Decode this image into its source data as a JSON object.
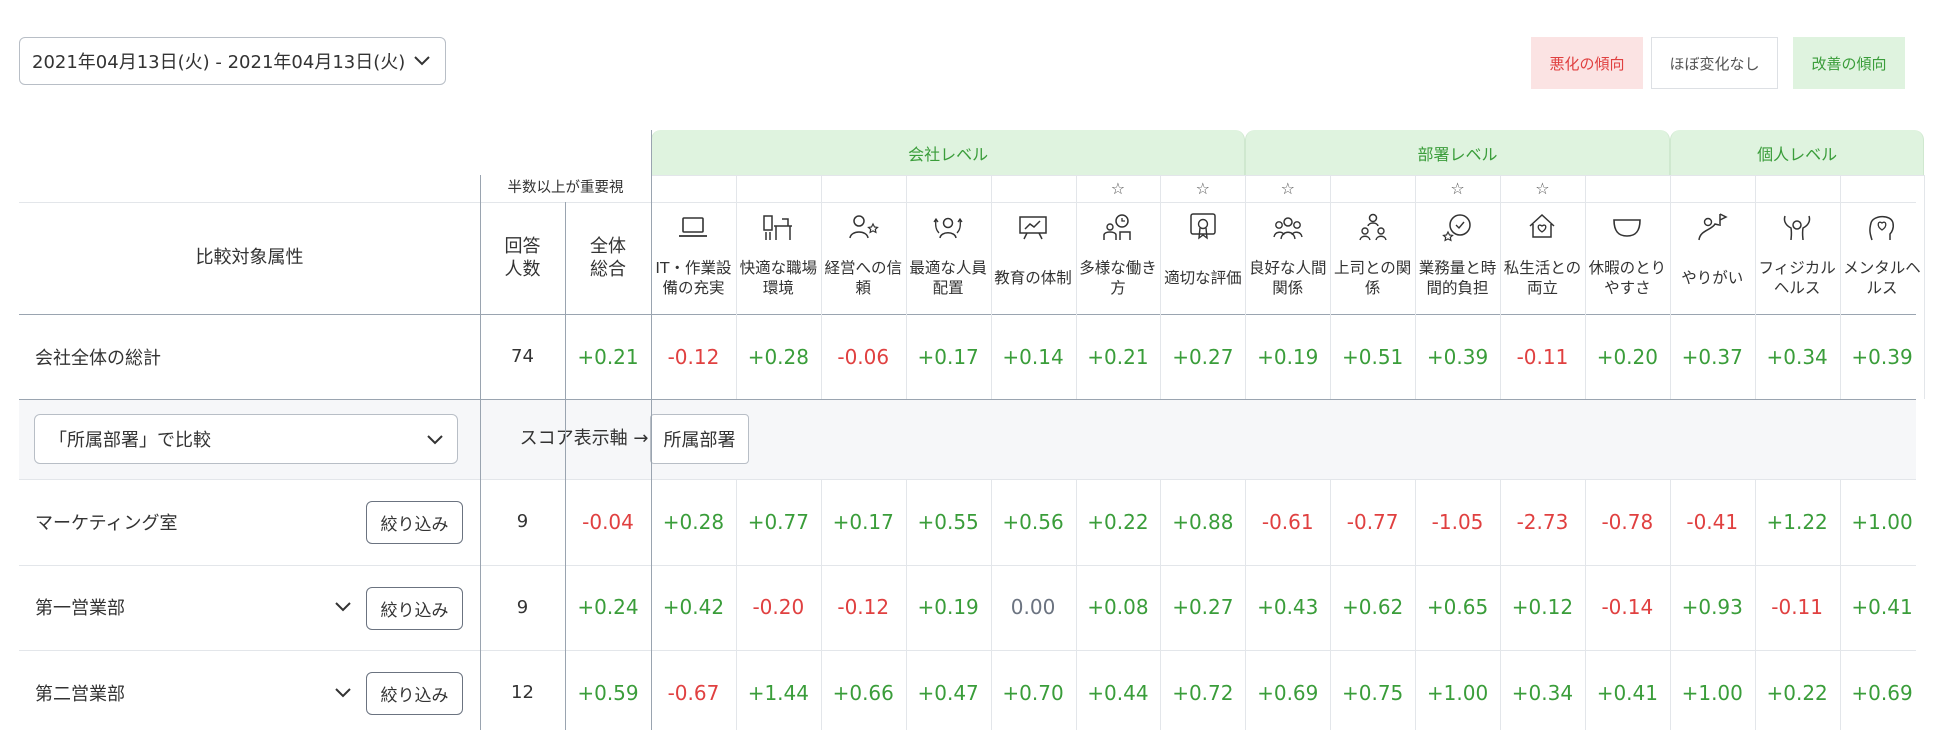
{
  "date_range": "2021年04月13日(火) - 2021年04月13日(火)",
  "legend": {
    "worse": "悪化の傾向",
    "flat": "ほぼ変化なし",
    "better": "改善の傾向"
  },
  "colors": {
    "positive": "#3a9d3a",
    "negative": "#e04040",
    "neutral": "#6b7380",
    "group_bg": "#dff3df"
  },
  "groups": [
    {
      "label": "会社レベル",
      "from": 0,
      "to": 6
    },
    {
      "label": "部署レベル",
      "from": 7,
      "to": 11
    },
    {
      "label": "個人レベル",
      "from": 12,
      "to": 14
    }
  ],
  "header": {
    "important_note": "半数以上が重要視",
    "attr_title": "比較対象属性",
    "respondents": "回答人数",
    "overall": "全体総合"
  },
  "columns": [
    {
      "label": "IT・作業設備の充実",
      "icon": "laptop-icon",
      "star": false
    },
    {
      "label": "快適な職場環境",
      "icon": "desk-icon",
      "star": false
    },
    {
      "label": "経営への信頼",
      "icon": "person-star-icon",
      "star": false
    },
    {
      "label": "最適な人員配置",
      "icon": "people-arrows-icon",
      "star": false
    },
    {
      "label": "教育の体制",
      "icon": "whiteboard-icon",
      "star": false
    },
    {
      "label": "多様な働き方",
      "icon": "clock-person-icon",
      "star": true
    },
    {
      "label": "適切な評価",
      "icon": "certificate-icon",
      "star": true
    },
    {
      "label": "良好な人間関係",
      "icon": "group-icon",
      "star": true
    },
    {
      "label": "上司との関係",
      "icon": "hierarchy-icon",
      "star": false
    },
    {
      "label": "業務量と時間的負担",
      "icon": "clock-star-icon",
      "star": true
    },
    {
      "label": "私生活との両立",
      "icon": "home-heart-icon",
      "star": true
    },
    {
      "label": "休暇のとりやすさ",
      "icon": "cup-icon",
      "star": false
    },
    {
      "label": "やりがい",
      "icon": "flag-icon",
      "star": false
    },
    {
      "label": "フィジカルヘルス",
      "icon": "strong-icon",
      "star": false
    },
    {
      "label": "メンタルヘルス",
      "icon": "heart-head-icon",
      "star": false
    }
  ],
  "total_row": {
    "label": "会社全体の総計",
    "count": "74",
    "overall": "+0.21",
    "scores": [
      "-0.12",
      "+0.28",
      "-0.06",
      "+0.17",
      "+0.14",
      "+0.21",
      "+0.27",
      "+0.19",
      "+0.51",
      "+0.39",
      "-0.11",
      "+0.20",
      "+0.37",
      "+0.34",
      "+0.39"
    ]
  },
  "compare": {
    "select_value": "「所属部署」で比較",
    "axis_label": "スコア表示軸 →",
    "axis_button": "所属部署"
  },
  "filter_label": "絞り込み",
  "rows": [
    {
      "label": "マーケティング室",
      "expandable": false,
      "count": "9",
      "overall": "-0.04",
      "scores": [
        "+0.28",
        "+0.77",
        "+0.17",
        "+0.55",
        "+0.56",
        "+0.22",
        "+0.88",
        "-0.61",
        "-0.77",
        "-1.05",
        "-2.73",
        "-0.78",
        "-0.41",
        "+1.22",
        "+1.00"
      ]
    },
    {
      "label": "第一営業部",
      "expandable": true,
      "count": "9",
      "overall": "+0.24",
      "scores": [
        "+0.42",
        "-0.20",
        "-0.12",
        "+0.19",
        "0.00",
        "+0.08",
        "+0.27",
        "+0.43",
        "+0.62",
        "+0.65",
        "+0.12",
        "-0.14",
        "+0.93",
        "-0.11",
        "+0.41"
      ]
    },
    {
      "label": "第二営業部",
      "expandable": true,
      "count": "12",
      "overall": "+0.59",
      "scores": [
        "-0.67",
        "+1.44",
        "+0.66",
        "+0.47",
        "+0.70",
        "+0.44",
        "+0.72",
        "+0.69",
        "+0.75",
        "+1.00",
        "+0.34",
        "+0.41",
        "+1.00",
        "+0.22",
        "+0.69"
      ]
    }
  ]
}
